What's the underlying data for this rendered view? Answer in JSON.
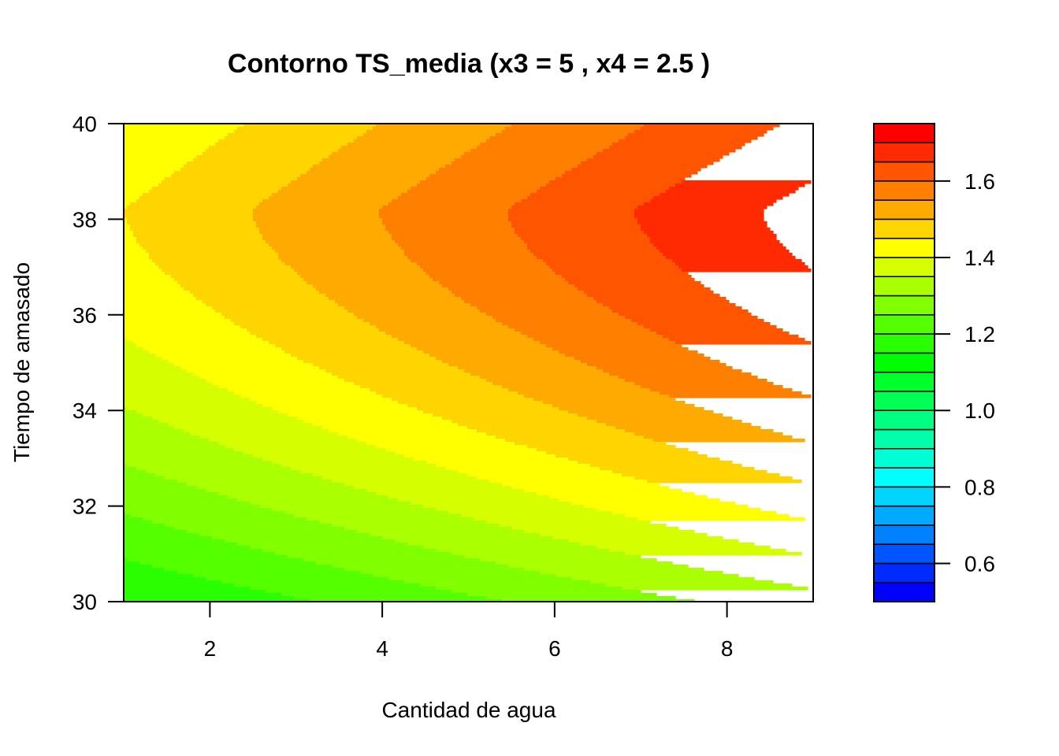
{
  "chart_data": {
    "type": "contour",
    "title": "Contorno TS_media (x3 = 5 , x4 = 2.5 )",
    "xlabel": "Cantidad de agua",
    "ylabel": "Tiempo de amasado",
    "xlim": [
      1,
      9
    ],
    "ylim": [
      30,
      40
    ],
    "x_ticks": [
      2,
      4,
      6,
      8
    ],
    "y_ticks": [
      30,
      32,
      34,
      36,
      38,
      40
    ],
    "colorbar": {
      "range": [
        0.5,
        1.75
      ],
      "levels": [
        0.5,
        0.55,
        0.6,
        0.65,
        0.7,
        0.75,
        0.8,
        0.85,
        0.9,
        0.95,
        1.0,
        1.05,
        1.1,
        1.15,
        1.2,
        1.25,
        1.3,
        1.35,
        1.4,
        1.45,
        1.5,
        1.55,
        1.6,
        1.65,
        1.7,
        1.75
      ],
      "tick_values": [
        0.6,
        0.8,
        1.0,
        1.2,
        1.4,
        1.6
      ],
      "tick_labels": [
        "0.6",
        "0.8",
        "1.0",
        "1.2",
        "1.4",
        "1.6"
      ],
      "palette": "rainbow blue to red"
    },
    "contour_edge_values": {
      "description": "approximate TS_media values at plot edges",
      "bottom_left": 1.15,
      "top_left": 1.45,
      "top_right": 1.72,
      "bottom_right": 1.33,
      "ridge_y": 38.2
    }
  }
}
